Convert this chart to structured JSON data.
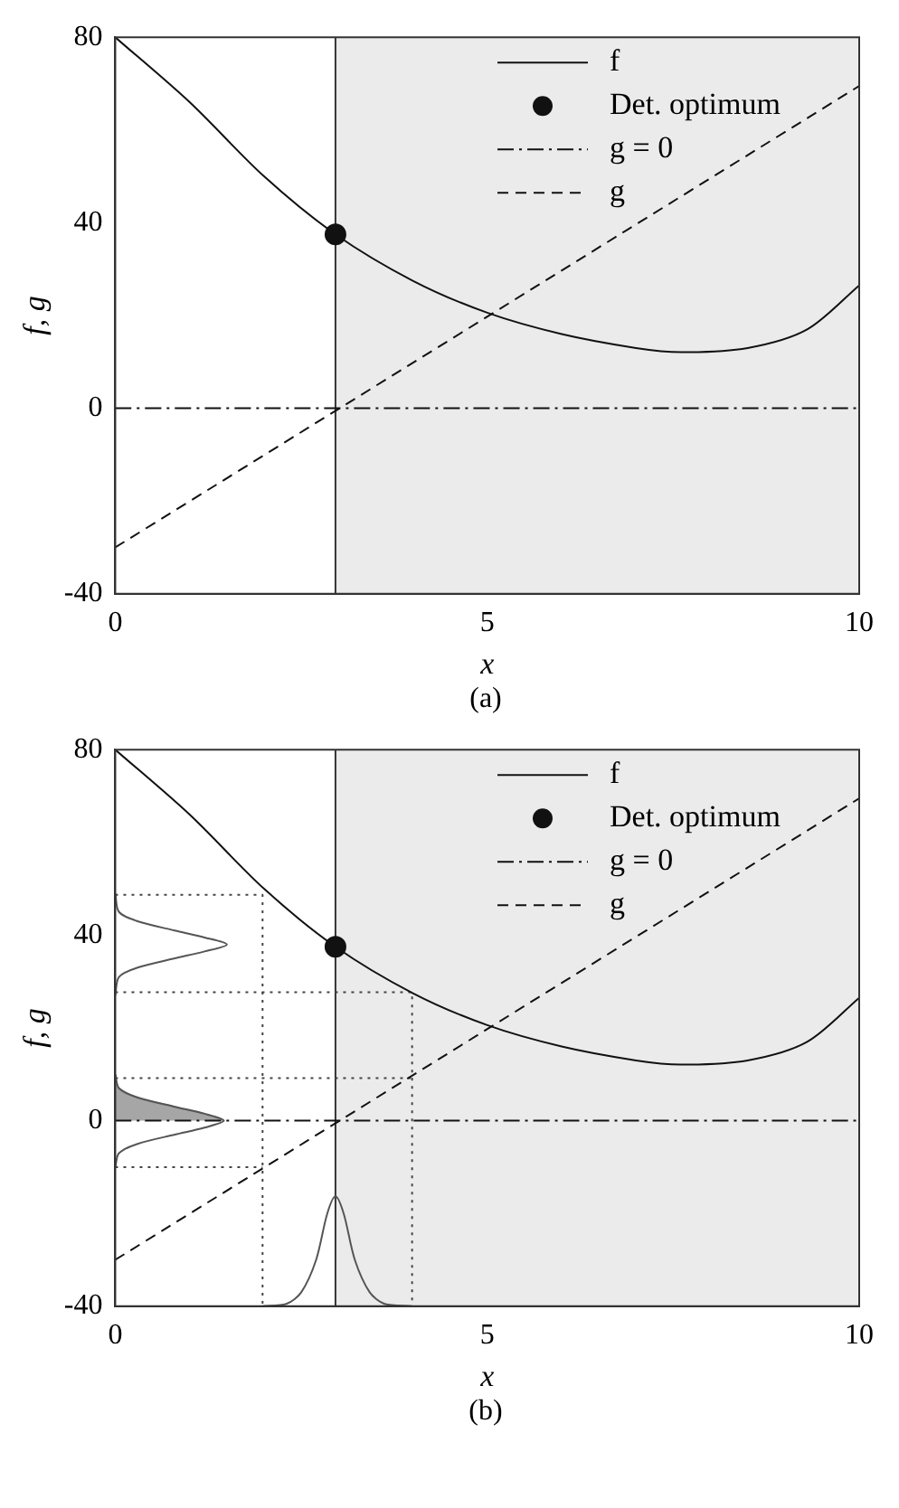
{
  "chart_data": [
    {
      "type": "line",
      "xlabel": "x",
      "ylabel": "f, g",
      "annotations": [
        "(a)"
      ],
      "xlim": [
        0,
        10
      ],
      "ylim": [
        -40,
        80
      ],
      "xticks": [
        0,
        5,
        10
      ],
      "yticks": [
        -40,
        0,
        40,
        80
      ],
      "grid": false,
      "legend": "top right",
      "bands": [
        {
          "axis": "x",
          "from": 2.96,
          "to": 10,
          "color": "#ebebeb"
        }
      ],
      "ref_lines": [
        {
          "axis": "x",
          "value": 2.96,
          "color": "#333333",
          "line_style": "solid"
        }
      ],
      "series": [
        {
          "name": "f",
          "color": "#111111",
          "line_style": "solid",
          "marker": "none",
          "x": [
            0,
            1,
            2,
            2.96,
            4,
            5,
            6,
            7,
            7.6,
            8.5,
            9.3,
            10
          ],
          "values": [
            80,
            66,
            50,
            37.5,
            27.5,
            20.6,
            16,
            13,
            12.1,
            13,
            17,
            26.5
          ]
        },
        {
          "name": "Det. optimum",
          "type": "scatter",
          "color": "#111111",
          "marker": "circle",
          "x": [
            2.96
          ],
          "values": [
            37.5
          ]
        },
        {
          "name": "g = 0",
          "color": "#111111",
          "line_style": "dashdot",
          "marker": "none",
          "x": [
            0,
            10
          ],
          "values": [
            0,
            0
          ]
        },
        {
          "name": "g",
          "color": "#111111",
          "line_style": "dashed",
          "marker": "none",
          "x": [
            0,
            10
          ],
          "values": [
            -30,
            69.5
          ]
        }
      ]
    },
    {
      "type": "line",
      "xlabel": "x",
      "ylabel": "f, g",
      "annotations": [
        "(b)"
      ],
      "xlim": [
        0,
        10
      ],
      "ylim": [
        -40,
        80
      ],
      "xticks": [
        0,
        5,
        10
      ],
      "yticks": [
        -40,
        0,
        40,
        80
      ],
      "grid": false,
      "legend": "top right",
      "bands": [
        {
          "axis": "x",
          "from": 2.96,
          "to": 10,
          "color": "#ebebeb"
        }
      ],
      "ref_lines": [
        {
          "axis": "x",
          "value": 2.96,
          "color": "#333333",
          "line_style": "solid"
        }
      ],
      "series": [
        {
          "name": "f",
          "color": "#111111",
          "line_style": "solid",
          "marker": "none",
          "x": [
            0,
            1,
            2,
            2.96,
            4,
            5,
            6,
            7,
            7.6,
            8.5,
            9.3,
            10
          ],
          "values": [
            80,
            66,
            50,
            37.5,
            27.5,
            20.6,
            16,
            13,
            12.1,
            13,
            17,
            26.5
          ]
        },
        {
          "name": "Det. optimum",
          "type": "scatter",
          "color": "#111111",
          "marker": "circle",
          "x": [
            2.96
          ],
          "values": [
            37.5
          ]
        },
        {
          "name": "g = 0",
          "color": "#111111",
          "line_style": "dashdot",
          "marker": "none",
          "x": [
            0,
            10
          ],
          "values": [
            0,
            0
          ]
        },
        {
          "name": "g",
          "color": "#111111",
          "line_style": "dashed",
          "marker": "none",
          "x": [
            0,
            10
          ],
          "values": [
            -30,
            69.5
          ]
        },
        {
          "type": "area",
          "color": "#a6a6a6",
          "line_style": "solid",
          "marker": "none",
          "x": [
            0,
            0.05,
            0.3,
            0.8,
            1.2,
            1.46
          ],
          "values": [
            9,
            7,
            5,
            3,
            1.5,
            0
          ]
        },
        {
          "color": "#555555",
          "line_style": "solid",
          "marker": "none",
          "x": [
            0,
            0.05,
            0.3,
            0.8,
            1.2,
            1.46,
            1.2,
            0.8,
            0.3,
            0.05,
            0
          ],
          "values": [
            -10,
            -7,
            -5,
            -3,
            -1.5,
            0,
            1.5,
            3,
            5,
            7,
            10
          ]
        },
        {
          "color": "#555555",
          "line_style": "solid",
          "marker": "none",
          "x": [
            0,
            0.05,
            0.3,
            0.8,
            1.2,
            1.5,
            1.2,
            0.8,
            0.3,
            0.05,
            0
          ],
          "values": [
            27,
            31,
            33,
            35,
            36.5,
            38,
            39.5,
            41,
            43,
            45,
            49
          ]
        },
        {
          "color": "#555555",
          "line_style": "solid",
          "marker": "none",
          "x": [
            1.98,
            2.3,
            2.5,
            2.7,
            2.85,
            2.96,
            3.07,
            3.22,
            3.42,
            3.62,
            3.99
          ],
          "values": [
            -40,
            -39.5,
            -37,
            -30,
            -20,
            -16.3,
            -20,
            -30,
            -37,
            -39.5,
            -40
          ]
        },
        {
          "color": "#444444",
          "line_style": "dotted",
          "marker": "none",
          "x": [
            0,
            1.98,
            1.98
          ],
          "values": [
            48.7,
            48.7,
            -40
          ]
        },
        {
          "color": "#444444",
          "line_style": "dotted",
          "marker": "none",
          "x": [
            0,
            3.99,
            3.99
          ],
          "values": [
            27.7,
            27.7,
            -40
          ]
        },
        {
          "color": "#444444",
          "line_style": "dotted",
          "marker": "none",
          "x": [
            0,
            3.99
          ],
          "values": [
            9.2,
            9.2
          ]
        },
        {
          "color": "#444444",
          "line_style": "dotted",
          "marker": "none",
          "x": [
            0,
            1.98
          ],
          "values": [
            -10,
            -10
          ]
        }
      ]
    }
  ]
}
